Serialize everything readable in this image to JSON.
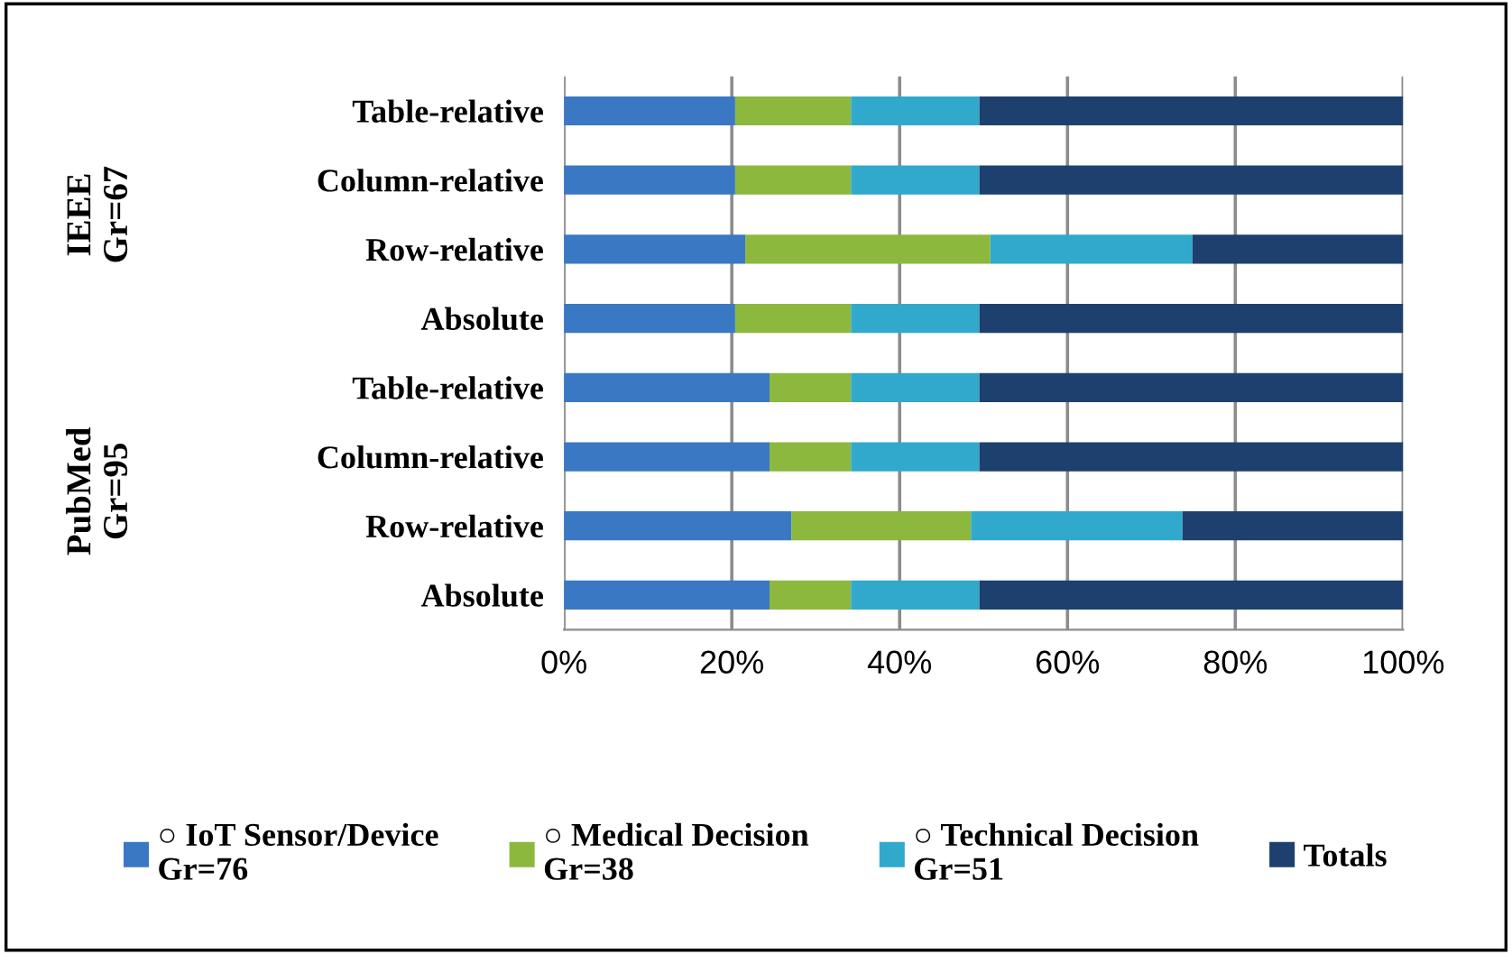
{
  "chart_data": {
    "type": "bar",
    "orientation": "horizontal",
    "stacked": true,
    "categories": [
      "Table-relative",
      "Column-relative",
      "Row-relative",
      "Absolute",
      "Table-relative",
      "Column-relative",
      "Row-relative",
      "Absolute"
    ],
    "series": [
      {
        "name": "○ IoT Sensor/Device\nGr=76",
        "color": "#3a78c4",
        "values": [
          20.4,
          20.4,
          21.6,
          20.4,
          24.5,
          24.5,
          27.1,
          24.5
        ]
      },
      {
        "name": "○ Medical Decision\nGr=38",
        "color": "#8db83e",
        "values": [
          13.8,
          13.8,
          29.2,
          13.8,
          9.7,
          9.7,
          21.4,
          9.7
        ]
      },
      {
        "name": "○ Technical Decision\nGr=51",
        "color": "#31a9cc",
        "values": [
          15.3,
          15.3,
          24.1,
          15.3,
          15.3,
          15.3,
          25.2,
          15.3
        ]
      },
      {
        "name": "Totals",
        "color": "#1d406e",
        "values": [
          50.5,
          50.5,
          25.1,
          50.5,
          50.5,
          50.5,
          26.3,
          50.5
        ]
      }
    ],
    "xlim": [
      0,
      100
    ],
    "xticks": [
      {
        "value": 0,
        "label": "0%"
      },
      {
        "value": 20,
        "label": "20%"
      },
      {
        "value": 40,
        "label": "40%"
      },
      {
        "value": 60,
        "label": "60%"
      },
      {
        "value": 80,
        "label": "80%"
      },
      {
        "value": 100,
        "label": "100%"
      }
    ],
    "grid": "x",
    "legend": "bottom",
    "annotations": [
      "IEEE\nGr=67",
      "PubMed\nGr=95"
    ]
  }
}
